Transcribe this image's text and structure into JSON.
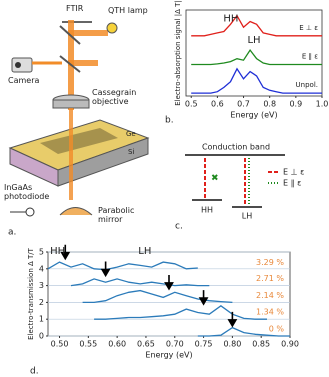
{
  "panel_a": {
    "label": "a.",
    "ftir": "FTIR",
    "lamp": "QTH lamp",
    "camera": "Camera",
    "objective": "Cassegrain objective",
    "ge": "Ge",
    "si": "Si",
    "photodiode": "InGaAs photodiode",
    "mirror": "Parabolic mirror"
  },
  "panel_c": {
    "label": "c.",
    "band": "Conduction band",
    "hh": "HH",
    "lh": "LH",
    "legend": [
      "E ⊥ ε",
      "E ∥ ε"
    ]
  },
  "chart_data": [
    {
      "type": "line",
      "label": "b.",
      "ylabel": "Electro-absorption signal |Δ T|",
      "xlabel": "Energy (eV)",
      "annotations": [
        "HH",
        "LH"
      ],
      "x": [
        0.5,
        0.525,
        0.55,
        0.575,
        0.6,
        0.625,
        0.65,
        0.675,
        0.7,
        0.725,
        0.75,
        0.775,
        0.8,
        0.825,
        0.85,
        0.875,
        0.9,
        0.925,
        0.95,
        0.975,
        1.0
      ],
      "xlim": [
        0.48,
        1.0
      ],
      "xticks": [
        0.5,
        0.6,
        0.7,
        0.8,
        0.9,
        {
          "value": 1,
          "label": "1.0"
        }
      ],
      "ylim": [
        0,
        3
      ],
      "series": [
        {
          "name": "E ⊥ ε",
          "color": "#e0201b",
          "values": [
            2.1,
            2.1,
            2.1,
            2.15,
            2.2,
            2.25,
            2.5,
            2.8,
            2.4,
            2.6,
            2.5,
            2.2,
            2.15,
            2.1,
            2.1,
            2.1,
            2.1,
            2.1,
            2.1,
            2.1,
            2.1
          ]
        },
        {
          "name": "E ∥ ε",
          "color": "#1f8a1f",
          "values": [
            1.1,
            1.1,
            1.1,
            1.1,
            1.12,
            1.15,
            1.2,
            1.3,
            1.25,
            1.6,
            1.3,
            1.15,
            1.1,
            1.1,
            1.1,
            1.1,
            1.1,
            1.1,
            1.1,
            1.1,
            1.1
          ]
        },
        {
          "name": "Unpol.",
          "color": "#1f2fd6",
          "values": [
            0.1,
            0.1,
            0.1,
            0.1,
            0.15,
            0.3,
            0.5,
            0.95,
            0.6,
            0.85,
            0.7,
            0.3,
            0.2,
            0.15,
            0.1,
            0.1,
            0.1,
            0.1,
            0.1,
            0.1,
            0.1
          ]
        }
      ]
    },
    {
      "type": "line",
      "label": "d.",
      "ylabel": "Electro-transmission Δ T/T",
      "xlabel": "Energy (eV)",
      "annotations": [
        "HH",
        "LH"
      ],
      "x": [
        0.48,
        0.5,
        0.52,
        0.54,
        0.56,
        0.58,
        0.6,
        0.62,
        0.64,
        0.66,
        0.68,
        0.7,
        0.72,
        0.74,
        0.76,
        0.78,
        0.8,
        0.82,
        0.84,
        0.86,
        0.88,
        0.9
      ],
      "xlim": [
        0.48,
        0.9
      ],
      "xticks": [
        {
          "value": 0.5,
          "label": "0.50"
        },
        {
          "value": 0.55,
          "label": "0.55"
        },
        {
          "value": 0.6,
          "label": "0.60"
        },
        {
          "value": 0.65,
          "label": "0.65"
        },
        {
          "value": 0.7,
          "label": "0.70"
        },
        {
          "value": 0.75,
          "label": "0.75"
        },
        {
          "value": 0.8,
          "label": "0.80"
        },
        {
          "value": 0.85,
          "label": "0.85"
        },
        {
          "value": 0.9,
          "label": "0.90"
        }
      ],
      "ylim": [
        0,
        5
      ],
      "yticks": [
        0,
        1,
        2,
        3,
        4,
        5
      ],
      "grid": true,
      "color": "#2b7bba",
      "label_color": "#e8883a",
      "series": [
        {
          "name": "3.29 %",
          "values": [
            4.0,
            4.4,
            4.1,
            4.3,
            4.0,
            3.95,
            4.1,
            4.3,
            4.2,
            4.1,
            4.4,
            4.3,
            4.0,
            4.05,
            null,
            null,
            null,
            null,
            null,
            null,
            null,
            null
          ]
        },
        {
          "name": "2.71 %",
          "values": [
            null,
            null,
            3.0,
            3.1,
            3.4,
            3.2,
            3.4,
            3.2,
            3.1,
            3.2,
            3.1,
            3.0,
            3.05,
            3.0,
            3.0,
            null,
            null,
            null,
            null,
            null,
            null,
            null
          ]
        },
        {
          "name": "2.14 %",
          "values": [
            null,
            null,
            null,
            2.0,
            2.0,
            2.1,
            2.4,
            2.6,
            2.7,
            2.5,
            2.3,
            2.6,
            2.4,
            2.2,
            2.1,
            2.05,
            2.0,
            null,
            null,
            null,
            null,
            null
          ]
        },
        {
          "name": "1.34 %",
          "values": [
            null,
            null,
            null,
            null,
            1.0,
            1.0,
            1.05,
            1.1,
            1.1,
            1.15,
            1.2,
            1.3,
            1.6,
            1.4,
            1.3,
            1.8,
            1.3,
            1.05,
            1.0,
            1.0,
            null,
            null
          ]
        },
        {
          "name": "0 %",
          "values": [
            null,
            null,
            null,
            null,
            null,
            null,
            null,
            null,
            null,
            null,
            null,
            null,
            null,
            0.0,
            0.0,
            0.05,
            0.5,
            0.2,
            0.1,
            0.05,
            0.0,
            0.0
          ]
        }
      ],
      "arrows": [
        {
          "x": 0.51,
          "y": 4.6
        },
        {
          "x": 0.58,
          "y": 3.6
        },
        {
          "x": 0.69,
          "y": 2.8
        },
        {
          "x": 0.75,
          "y": 1.9
        },
        {
          "x": 0.8,
          "y": 0.6
        }
      ]
    }
  ]
}
